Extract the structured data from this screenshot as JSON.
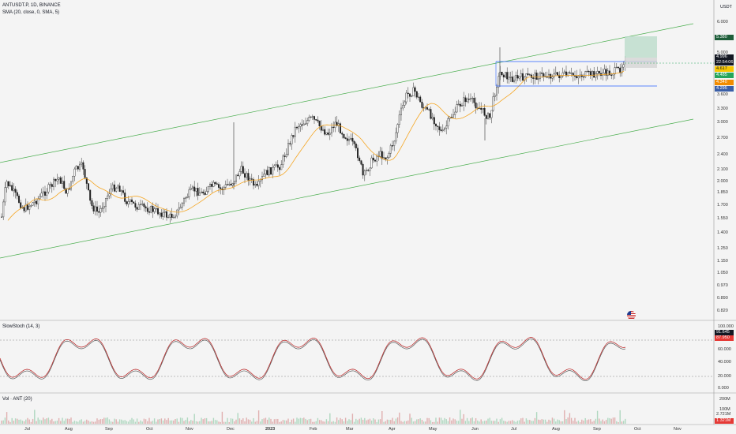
{
  "symbol_line": "ANTUSDT.P, 1D, BINANCE",
  "sma_line": "SMA (20, close, 0, SMA, 5)",
  "stoch_line": "SlowStoch (14, 3)",
  "vol_line": "Vol · ANT (20)",
  "currency": "USDT",
  "price_axis": [
    "6.000",
    "5.380",
    "4.996",
    "22:54:06",
    "4.617",
    "4.485",
    "4.340",
    "4.295",
    "3.600",
    "3.300",
    "3.000",
    "2.700",
    "2.400",
    "2.100",
    "2.000",
    "1.850",
    "1.700",
    "1.550",
    "1.400",
    "1.250",
    "1.150",
    "1.050",
    "0.970",
    "0.890",
    "0.820",
    "4.800",
    "5.000"
  ],
  "price_tags": {
    "target": {
      "text": "5.380",
      "color": "#1e5e3a"
    },
    "current": {
      "text": "4.996",
      "color": "#131722"
    },
    "countdown": {
      "text": "22:54:06",
      "color": "#131722"
    },
    "yellow": {
      "text": "4.617",
      "color": "#f7c600"
    },
    "green": {
      "text": "4.485",
      "color": "#26a65b"
    },
    "orange": {
      "text": "4.340",
      "color": "#f28c00"
    },
    "blue": {
      "text": "4.295",
      "color": "#3a5fa8"
    }
  },
  "stoch_axis": [
    "100.000",
    "80.000",
    "60.000",
    "40.000",
    "20.000",
    "0.000"
  ],
  "stoch_tags": {
    "k": "91.645",
    "d": "87.950"
  },
  "vol_axis": [
    "200M",
    "100M"
  ],
  "vol_tags": {
    "a": "2.721M",
    "b": "1.321M"
  },
  "time_axis": [
    "Jul",
    "Aug",
    "Sep",
    "Oct",
    "Nov",
    "Dec",
    "2023",
    "Feb",
    "Mar",
    "Apr",
    "May",
    "Jun",
    "Jul",
    "Aug",
    "Sep",
    "Oct",
    "Nov"
  ],
  "colors": {
    "channel": "#4caf50",
    "sma": "#f5a623",
    "stoch_k": "#b71c1c",
    "stoch_d": "#444444",
    "range": "#2962ff"
  }
}
